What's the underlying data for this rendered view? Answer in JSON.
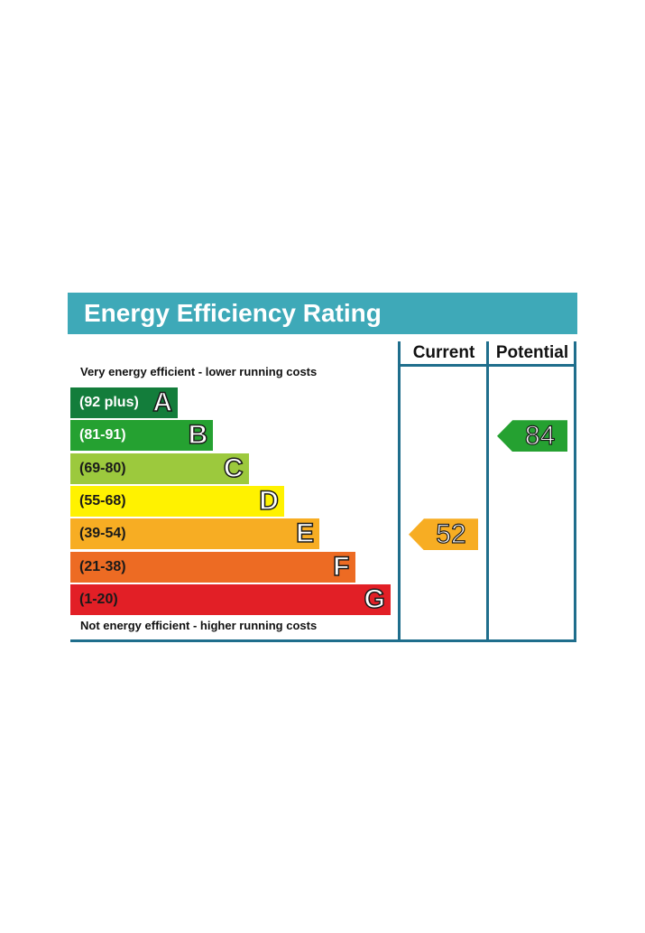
{
  "chart_data": {
    "type": "table",
    "title": "Energy Efficiency Rating",
    "columns": [
      "Current",
      "Potential"
    ],
    "top_caption": "Very energy efficient - lower running costs",
    "bottom_caption": "Not energy efficient - higher running costs",
    "bands": [
      {
        "range": "(92 plus)",
        "letter": "A",
        "color": "#137d3b",
        "text_color": "#ffffff"
      },
      {
        "range": "(81-91)",
        "letter": "B",
        "color": "#25a131",
        "text_color": "#ffffff"
      },
      {
        "range": "(69-80)",
        "letter": "C",
        "color": "#9cc93d",
        "text_color": "#1a1a1a"
      },
      {
        "range": "(55-68)",
        "letter": "D",
        "color": "#fff200",
        "text_color": "#1a1a1a"
      },
      {
        "range": "(39-54)",
        "letter": "E",
        "color": "#f7ad23",
        "text_color": "#1a1a1a"
      },
      {
        "range": "(21-38)",
        "letter": "F",
        "color": "#ed6b23",
        "text_color": "#1a1a1a"
      },
      {
        "range": "(1-20)",
        "letter": "G",
        "color": "#e21f26",
        "text_color": "#1a1a1a"
      }
    ],
    "current": {
      "value": 52,
      "band": "E",
      "color": "#f7ad23"
    },
    "potential": {
      "value": 84,
      "band": "B",
      "color": "#25a131"
    }
  }
}
